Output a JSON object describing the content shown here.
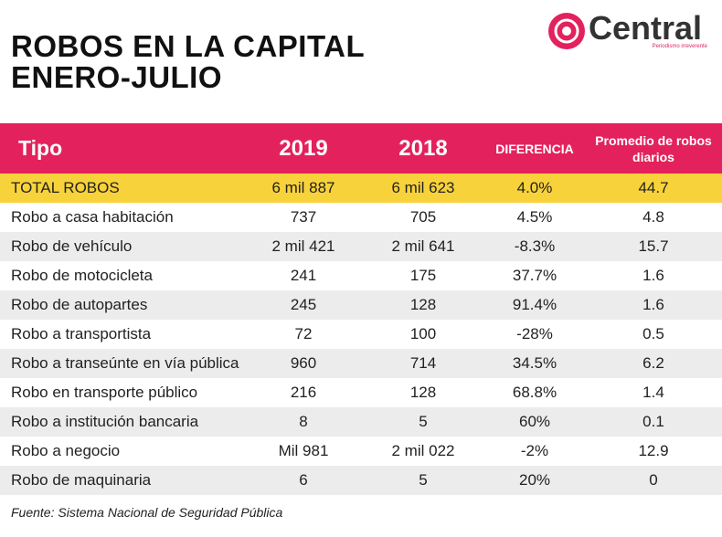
{
  "header": {
    "title_lines": [
      "ROBOS EN LA CAPITAL",
      "ENERO-JULIO"
    ],
    "logo": {
      "name": "Central",
      "tagline": "Periodismo irreverente"
    }
  },
  "table": {
    "columns": [
      "Tipo",
      "2019",
      "2018",
      "DIFERENCIA",
      "Promedio de robos diarios"
    ],
    "rows": [
      [
        "TOTAL ROBOS",
        "6 mil 887",
        "6 mil 623",
        "4.0%",
        "44.7"
      ],
      [
        "Robo a casa habitación",
        "737",
        "705",
        "4.5%",
        "4.8"
      ],
      [
        "Robo de vehículo",
        "2 mil 421",
        "2 mil 641",
        "-8.3%",
        "15.7"
      ],
      [
        "Robo de motocicleta",
        "241",
        "175",
        "37.7%",
        "1.6"
      ],
      [
        "Robo de autopartes",
        "245",
        "128",
        "91.4%",
        "1.6"
      ],
      [
        "Robo a transportista",
        "72",
        "100",
        "-28%",
        "0.5"
      ],
      [
        "Robo a transeúnte en vía pública",
        "960",
        "714",
        "34.5%",
        "6.2"
      ],
      [
        "Robo en transporte público",
        "216",
        "128",
        "68.8%",
        "1.4"
      ],
      [
        "Robo a institución bancaria",
        "8",
        "5",
        "60%",
        "0.1"
      ],
      [
        "Robo a negocio",
        "Mil 981",
        "2 mil 022",
        "-2%",
        "12.9"
      ],
      [
        "Robo de maquinaria",
        "6",
        "5",
        "20%",
        "0"
      ]
    ]
  },
  "footer": {
    "source": "Fuente: Sistema Nacional de Seguridad Pública"
  }
}
